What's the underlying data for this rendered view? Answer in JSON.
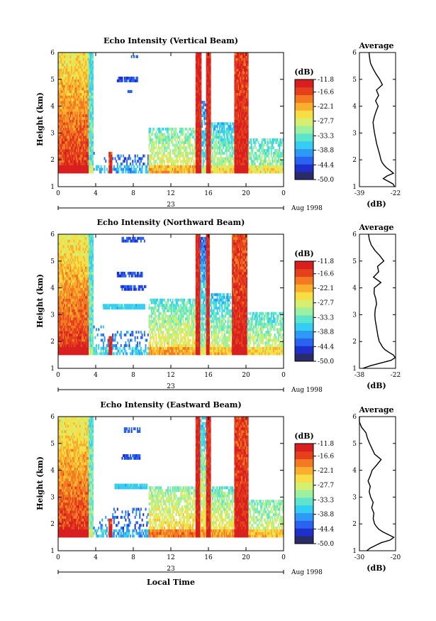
{
  "panels": [
    {
      "title": "Echo Intensity (Vertical Beam)",
      "avg_title": "Average",
      "avg_xticks": [
        "-39",
        "-22"
      ],
      "avg_profile": [
        [
          1.0,
          -22.5
        ],
        [
          1.1,
          -23.2
        ],
        [
          1.2,
          -25.5
        ],
        [
          1.3,
          -27.8
        ],
        [
          1.4,
          -26.0
        ],
        [
          1.5,
          -23.0
        ],
        [
          1.6,
          -24.5
        ],
        [
          1.7,
          -26.2
        ],
        [
          1.8,
          -27.4
        ],
        [
          1.9,
          -28.3
        ],
        [
          2.0,
          -28.9
        ],
        [
          2.2,
          -29.5
        ],
        [
          2.4,
          -30.2
        ],
        [
          2.6,
          -30.9
        ],
        [
          2.8,
          -31.4
        ],
        [
          3.0,
          -31.9
        ],
        [
          3.2,
          -32.3
        ],
        [
          3.4,
          -32.6
        ],
        [
          3.6,
          -32.0
        ],
        [
          3.8,
          -31.2
        ],
        [
          4.0,
          -30.2
        ],
        [
          4.2,
          -31.4
        ],
        [
          4.4,
          -30.0
        ],
        [
          4.6,
          -31.0
        ],
        [
          4.8,
          -28.2
        ],
        [
          5.0,
          -29.5
        ],
        [
          5.2,
          -31.2
        ],
        [
          5.4,
          -32.6
        ],
        [
          5.6,
          -33.8
        ],
        [
          5.8,
          -34.2
        ],
        [
          6.0,
          -34.5
        ]
      ]
    },
    {
      "title": "Echo Intensity (Northward Beam)",
      "avg_title": "Average",
      "avg_xticks": [
        "-38",
        "-22"
      ],
      "avg_profile": [
        [
          1.0,
          -36.5
        ],
        [
          1.1,
          -33.0
        ],
        [
          1.2,
          -28.5
        ],
        [
          1.3,
          -24.0
        ],
        [
          1.4,
          -22.2
        ],
        [
          1.5,
          -23.0
        ],
        [
          1.6,
          -25.0
        ],
        [
          1.7,
          -26.8
        ],
        [
          1.8,
          -27.8
        ],
        [
          1.9,
          -28.5
        ],
        [
          2.0,
          -29.2
        ],
        [
          2.2,
          -29.8
        ],
        [
          2.4,
          -30.2
        ],
        [
          2.6,
          -30.6
        ],
        [
          2.8,
          -31.0
        ],
        [
          3.0,
          -31.2
        ],
        [
          3.2,
          -31.0
        ],
        [
          3.4,
          -30.4
        ],
        [
          3.6,
          -30.8
        ],
        [
          3.8,
          -31.5
        ],
        [
          4.0,
          -31.4
        ],
        [
          4.2,
          -28.5
        ],
        [
          4.4,
          -31.8
        ],
        [
          4.6,
          -29.5
        ],
        [
          4.8,
          -30.0
        ],
        [
          5.0,
          -27.2
        ],
        [
          5.2,
          -29.0
        ],
        [
          5.4,
          -31.2
        ],
        [
          5.6,
          -32.8
        ],
        [
          5.8,
          -33.6
        ],
        [
          6.0,
          -34.0
        ]
      ]
    },
    {
      "title": "Echo Intensity (Eastward Beam)",
      "avg_title": "Average",
      "avg_xticks": [
        "-30",
        "-20"
      ],
      "avg_profile": [
        [
          1.0,
          -28.0
        ],
        [
          1.1,
          -27.0
        ],
        [
          1.2,
          -25.5
        ],
        [
          1.3,
          -24.0
        ],
        [
          1.4,
          -21.5
        ],
        [
          1.5,
          -20.5
        ],
        [
          1.6,
          -22.0
        ],
        [
          1.7,
          -23.5
        ],
        [
          1.8,
          -24.6
        ],
        [
          1.9,
          -25.3
        ],
        [
          2.0,
          -25.8
        ],
        [
          2.2,
          -26.2
        ],
        [
          2.4,
          -26.0
        ],
        [
          2.6,
          -26.6
        ],
        [
          2.8,
          -26.2
        ],
        [
          3.0,
          -26.9
        ],
        [
          3.2,
          -27.3
        ],
        [
          3.4,
          -27.0
        ],
        [
          3.6,
          -27.6
        ],
        [
          3.8,
          -27.0
        ],
        [
          4.0,
          -26.5
        ],
        [
          4.2,
          -25.2
        ],
        [
          4.4,
          -24.0
        ],
        [
          4.6,
          -25.8
        ],
        [
          4.8,
          -26.5
        ],
        [
          5.0,
          -27.2
        ],
        [
          5.2,
          -27.8
        ],
        [
          5.4,
          -28.2
        ],
        [
          5.6,
          -29.4
        ],
        [
          5.8,
          -30.2
        ],
        [
          6.0,
          -30.6
        ]
      ]
    }
  ],
  "y_axis_label": "Height (km)",
  "y_ticks": [
    "1",
    "2",
    "3",
    "4",
    "5",
    "6"
  ],
  "x_ticks": [
    "0",
    "4",
    "8",
    "12",
    "16",
    "20",
    "0"
  ],
  "date_day": "23",
  "date_label": "Aug 1998",
  "x_axis_label": "Local Time",
  "colorbar": {
    "unit": "(dB)",
    "ticks": [
      "-11.8",
      "-16.6",
      "-22.1",
      "-27.7",
      "-33.3",
      "-38.8",
      "-44.4",
      "-50.0"
    ]
  },
  "avg_x_label": "(dB)",
  "colors": {
    "scale": [
      "#2a2c6a",
      "#1f2fc9",
      "#2a63ef",
      "#2e9af5",
      "#36cdf2",
      "#5ce4cd",
      "#9df0a0",
      "#d6ef6e",
      "#f7de45",
      "#f9ae2e",
      "#f27a22",
      "#e5401c",
      "#d81f1f"
    ]
  },
  "chart_data": [
    {
      "type": "heatmap",
      "title": "Echo Intensity (Vertical Beam)",
      "ylabel": "Height (km)",
      "xlabel": "",
      "xlim": [
        0,
        24
      ],
      "ylim": [
        1,
        6
      ],
      "colorbar_range_db": [
        -50.0,
        -11.8
      ],
      "height_range_km": [
        1.5,
        6.0
      ],
      "segments": [
        {
          "start": 0.0,
          "end": 3.3,
          "base_db": -13,
          "slope": 2.8,
          "cover": 1.0
        },
        {
          "start": 3.3,
          "end": 3.8,
          "base_db": -33,
          "slope": 0.5,
          "cover": 1.0
        },
        {
          "start": 3.8,
          "end": 5.4,
          "base_db": -42,
          "slope": 0,
          "cover": 0.06,
          "top": 2.4
        },
        {
          "start": 5.4,
          "end": 5.8,
          "base_db": -14,
          "slope": 0,
          "cover": 1.0,
          "top": 2.3
        },
        {
          "start": 5.8,
          "end": 9.6,
          "base_db": -43,
          "slope": 0,
          "cover": 0.35,
          "top": 2.2
        },
        {
          "start": 9.6,
          "end": 14.6,
          "base_db": -25,
          "slope": 5.0,
          "cover": 0.7,
          "top": 3.2
        },
        {
          "start": 14.6,
          "end": 15.2,
          "base_db": -12,
          "slope": 0,
          "cover": 1.0,
          "top": 6.0
        },
        {
          "start": 15.2,
          "end": 15.7,
          "base_db": -33,
          "slope": 3.0,
          "cover": 0.8,
          "top": 4.2
        },
        {
          "start": 15.7,
          "end": 16.2,
          "base_db": -12,
          "slope": 0,
          "cover": 1.0,
          "top": 6.0
        },
        {
          "start": 16.2,
          "end": 18.7,
          "base_db": -28,
          "slope": 5.0,
          "cover": 0.75,
          "top": 3.4
        },
        {
          "start": 18.7,
          "end": 20.2,
          "base_db": -12,
          "slope": 0.6,
          "cover": 1.0,
          "top": 6.0
        },
        {
          "start": 20.2,
          "end": 24.0,
          "base_db": -29,
          "slope": 5.0,
          "cover": 0.7,
          "top": 2.8
        }
      ],
      "blocks": [
        {
          "t0": 6.2,
          "t1": 8.5,
          "h0": 4.9,
          "h1": 5.05,
          "db": -45,
          "cover": 0.85
        },
        {
          "t0": 7.2,
          "t1": 8.0,
          "h0": 4.5,
          "h1": 4.6,
          "db": -44,
          "cover": 0.8
        },
        {
          "t0": 7.8,
          "t1": 8.6,
          "h0": 5.75,
          "h1": 5.9,
          "db": -43,
          "cover": 0.7
        }
      ]
    },
    {
      "type": "heatmap",
      "title": "Echo Intensity (Northward Beam)",
      "ylabel": "Height (km)",
      "xlabel": "",
      "xlim": [
        0,
        24
      ],
      "ylim": [
        1,
        6
      ],
      "colorbar_range_db": [
        -50.0,
        -11.8
      ],
      "height_range_km": [
        1.5,
        6.0
      ],
      "segments": [
        {
          "start": 0.0,
          "end": 3.3,
          "base_db": -13,
          "slope": 3.0,
          "cover": 1.0
        },
        {
          "start": 3.3,
          "end": 3.8,
          "base_db": -33,
          "slope": 0.5,
          "cover": 1.0
        },
        {
          "start": 3.8,
          "end": 5.4,
          "base_db": -40,
          "slope": 0,
          "cover": 0.25,
          "top": 2.6
        },
        {
          "start": 5.4,
          "end": 5.8,
          "base_db": -14,
          "slope": 0,
          "cover": 1.0,
          "top": 2.2
        },
        {
          "start": 5.8,
          "end": 9.6,
          "base_db": -42,
          "slope": 0,
          "cover": 0.3,
          "top": 2.4
        },
        {
          "start": 9.6,
          "end": 14.6,
          "base_db": -24,
          "slope": 5.0,
          "cover": 0.75,
          "top": 3.6
        },
        {
          "start": 14.6,
          "end": 15.1,
          "base_db": -12,
          "slope": 0,
          "cover": 1.0,
          "top": 6.0
        },
        {
          "start": 15.1,
          "end": 15.7,
          "base_db": -30,
          "slope": 3.0,
          "cover": 0.85,
          "top": 5.9
        },
        {
          "start": 15.7,
          "end": 16.1,
          "base_db": -12,
          "slope": 0,
          "cover": 1.0,
          "top": 6.0
        },
        {
          "start": 16.1,
          "end": 18.5,
          "base_db": -26,
          "slope": 5.0,
          "cover": 0.75,
          "top": 3.8
        },
        {
          "start": 18.5,
          "end": 20.1,
          "base_db": -12,
          "slope": 0.8,
          "cover": 1.0,
          "top": 6.0
        },
        {
          "start": 20.1,
          "end": 24.0,
          "base_db": -27,
          "slope": 5.0,
          "cover": 0.7,
          "top": 3.1
        }
      ],
      "blocks": [
        {
          "t0": 6.2,
          "t1": 9.0,
          "h0": 4.4,
          "h1": 4.6,
          "db": -45,
          "cover": 0.8
        },
        {
          "t0": 6.6,
          "t1": 9.4,
          "h0": 3.9,
          "h1": 4.15,
          "db": -45,
          "cover": 0.8
        },
        {
          "t0": 4.8,
          "t1": 9.2,
          "h0": 3.25,
          "h1": 3.4,
          "db": -37,
          "cover": 0.95
        },
        {
          "t0": 6.8,
          "t1": 9.2,
          "h0": 5.7,
          "h1": 5.9,
          "db": -44,
          "cover": 0.7
        }
      ]
    },
    {
      "type": "heatmap",
      "title": "Echo Intensity (Eastward Beam)",
      "ylabel": "Height (km)",
      "xlabel": "Local Time",
      "xlim": [
        0,
        24
      ],
      "ylim": [
        1,
        6
      ],
      "colorbar_range_db": [
        -50.0,
        -11.8
      ],
      "height_range_km": [
        1.5,
        6.0
      ],
      "segments": [
        {
          "start": 0.0,
          "end": 3.3,
          "base_db": -13,
          "slope": 3.0,
          "cover": 1.0
        },
        {
          "start": 3.3,
          "end": 3.8,
          "base_db": -32,
          "slope": 0.5,
          "cover": 1.0
        },
        {
          "start": 3.8,
          "end": 5.4,
          "base_db": -41,
          "slope": 0,
          "cover": 0.15,
          "top": 2.3
        },
        {
          "start": 5.4,
          "end": 5.8,
          "base_db": -14,
          "slope": 0,
          "cover": 1.0,
          "top": 2.2
        },
        {
          "start": 5.8,
          "end": 9.6,
          "base_db": -43,
          "slope": 0,
          "cover": 0.3,
          "top": 2.6
        },
        {
          "start": 9.6,
          "end": 14.6,
          "base_db": -22,
          "slope": 5.0,
          "cover": 0.75,
          "top": 3.4
        },
        {
          "start": 14.6,
          "end": 15.1,
          "base_db": -12,
          "slope": 0,
          "cover": 1.0,
          "top": 6.0
        },
        {
          "start": 15.1,
          "end": 15.8,
          "base_db": -24,
          "slope": 3.0,
          "cover": 0.85,
          "top": 6.0
        },
        {
          "start": 15.8,
          "end": 16.2,
          "base_db": -13,
          "slope": 0,
          "cover": 1.0,
          "top": 6.0
        },
        {
          "start": 16.2,
          "end": 18.7,
          "base_db": -24,
          "slope": 5.0,
          "cover": 0.75,
          "top": 3.4
        },
        {
          "start": 18.7,
          "end": 20.2,
          "base_db": -12,
          "slope": 0.7,
          "cover": 1.0,
          "top": 6.0
        },
        {
          "start": 20.2,
          "end": 24.0,
          "base_db": -26,
          "slope": 5.0,
          "cover": 0.7,
          "top": 2.9
        }
      ],
      "blocks": [
        {
          "t0": 6.0,
          "t1": 9.5,
          "h0": 3.35,
          "h1": 3.55,
          "db": -37,
          "cover": 0.95
        },
        {
          "t0": 6.8,
          "t1": 8.8,
          "h0": 4.45,
          "h1": 4.6,
          "db": -45,
          "cover": 0.85
        },
        {
          "t0": 7.0,
          "t1": 8.8,
          "h0": 5.4,
          "h1": 5.6,
          "db": -44,
          "cover": 0.6
        }
      ]
    }
  ]
}
